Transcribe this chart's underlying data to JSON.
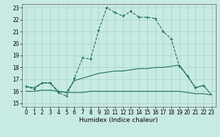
{
  "xlabel": "Humidex (Indice chaleur)",
  "xlim": [
    -0.5,
    23.5
  ],
  "ylim": [
    14.7,
    23.3
  ],
  "yticks": [
    15,
    16,
    17,
    18,
    19,
    20,
    21,
    22,
    23
  ],
  "xticks": [
    0,
    1,
    2,
    3,
    4,
    5,
    6,
    7,
    8,
    9,
    10,
    11,
    12,
    13,
    14,
    15,
    16,
    17,
    18,
    19,
    20,
    21,
    22,
    23
  ],
  "bg_color": "#c8eae4",
  "grid_color": "#a0cfc7",
  "line_color": "#1a6b5a",
  "line1_x": [
    0,
    1,
    2,
    3,
    4,
    5,
    6,
    7,
    8,
    9,
    10,
    11,
    12,
    13,
    14,
    15,
    16,
    17,
    18,
    19,
    20,
    21,
    22
  ],
  "line1_y": [
    16.4,
    16.2,
    16.7,
    16.7,
    15.9,
    15.6,
    17.1,
    18.8,
    18.7,
    21.1,
    23.0,
    22.6,
    22.3,
    22.7,
    22.2,
    22.2,
    22.1,
    21.0,
    20.4,
    18.1,
    17.3,
    16.3,
    16.5
  ],
  "line2_x": [
    0,
    1,
    2,
    3,
    4,
    5,
    6,
    7,
    8,
    9,
    10,
    11,
    12,
    13,
    14,
    15,
    16,
    17,
    18,
    19,
    20,
    21,
    22,
    23
  ],
  "line2_y": [
    16.4,
    16.3,
    16.7,
    16.7,
    16.0,
    15.9,
    16.9,
    17.1,
    17.3,
    17.5,
    17.6,
    17.7,
    17.7,
    17.8,
    17.9,
    17.9,
    18.0,
    18.0,
    18.1,
    18.2,
    17.3,
    16.3,
    16.5,
    15.7
  ],
  "line3_x": [
    0,
    1,
    2,
    3,
    4,
    5,
    6,
    7,
    8,
    9,
    10,
    11,
    12,
    13,
    14,
    15,
    16,
    17,
    18,
    19,
    20,
    21,
    22,
    23
  ],
  "line3_y": [
    16.0,
    16.0,
    16.1,
    16.1,
    16.0,
    15.9,
    15.9,
    15.9,
    16.0,
    16.0,
    16.0,
    16.0,
    16.0,
    16.0,
    16.0,
    16.0,
    16.0,
    16.0,
    16.0,
    16.0,
    15.9,
    15.8,
    15.8,
    15.7
  ],
  "xlabel_fontsize": 6.5,
  "tick_fontsize": 5.5
}
